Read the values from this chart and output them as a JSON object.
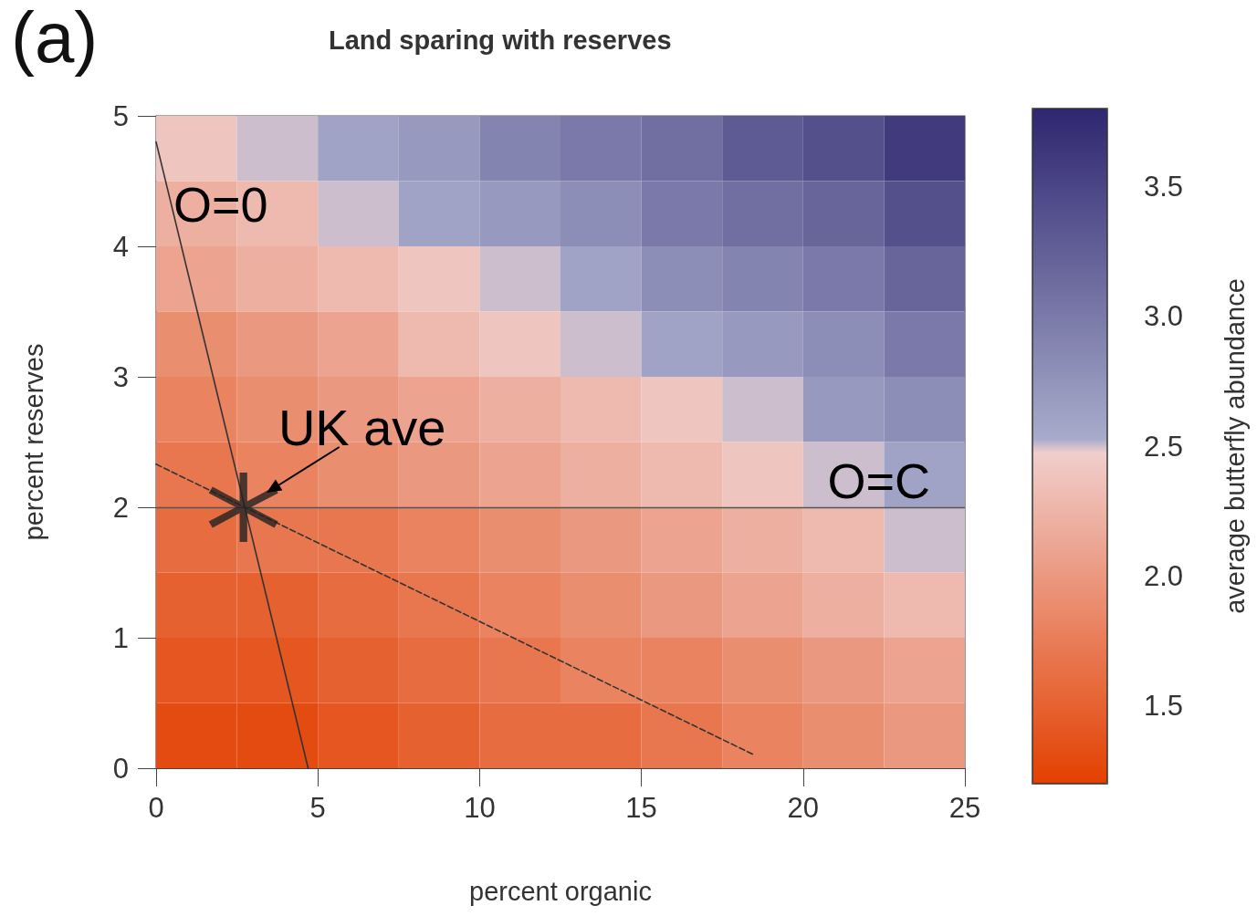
{
  "chart_data": {
    "type": "heatmap",
    "title": "Land sparing with reserves",
    "xlabel": "percent organic",
    "ylabel": "percent reserves",
    "clabel": "average butterfly abundance",
    "cells": [
      [
        2.4,
        2.5,
        2.6,
        2.7,
        2.9,
        3.0,
        3.1,
        3.3,
        3.4,
        3.6
      ],
      [
        2.2,
        2.3,
        2.5,
        2.6,
        2.7,
        2.8,
        3.0,
        3.1,
        3.2,
        3.4
      ],
      [
        2.1,
        2.2,
        2.3,
        2.4,
        2.5,
        2.6,
        2.8,
        2.9,
        3.0,
        3.2
      ],
      [
        1.9,
        2.0,
        2.1,
        2.3,
        2.4,
        2.5,
        2.6,
        2.7,
        2.8,
        3.0
      ],
      [
        1.8,
        1.9,
        2.0,
        2.1,
        2.2,
        2.3,
        2.4,
        2.5,
        2.7,
        2.8
      ],
      [
        1.7,
        1.8,
        1.9,
        2.0,
        2.1,
        2.2,
        2.3,
        2.4,
        2.5,
        2.6
      ],
      [
        1.6,
        1.7,
        1.7,
        1.8,
        1.9,
        2.0,
        2.1,
        2.2,
        2.3,
        2.5
      ],
      [
        1.5,
        1.5,
        1.6,
        1.7,
        1.8,
        1.9,
        2.0,
        2.1,
        2.2,
        2.3
      ],
      [
        1.4,
        1.4,
        1.5,
        1.6,
        1.7,
        1.8,
        1.8,
        1.9,
        2.0,
        2.1
      ],
      [
        1.3,
        1.3,
        1.4,
        1.5,
        1.6,
        1.6,
        1.7,
        1.8,
        1.9,
        2.0
      ]
    ],
    "clim": [
      1.2,
      3.8
    ],
    "cticks": [
      1.5,
      {
        "value": 2,
        "label": "2.0"
      },
      2.5,
      {
        "value": 3,
        "label": "3.0"
      },
      3.5
    ],
    "colors": [
      "#e34000",
      "#f0d0d0",
      "#aaaecc",
      "#2e2670"
    ],
    "xlim": [
      0,
      25
    ],
    "xticks": [
      0,
      5,
      10,
      15,
      20,
      25
    ],
    "ylim": [
      0,
      5
    ],
    "yticks": [
      0,
      1,
      2,
      3,
      4,
      5
    ],
    "series": [
      {
        "type": "line",
        "name": "O=0",
        "x": [
          0,
          4.7
        ],
        "values": [
          4.8,
          0
        ],
        "color": "#333333",
        "line_style": "solid",
        "marker": "none"
      },
      {
        "type": "line",
        "x": [
          0,
          18.5
        ],
        "values": [
          2.33,
          0.1
        ],
        "color": "#333333",
        "line_style": "dashed",
        "marker": "none"
      },
      {
        "type": "scatter",
        "x": [
          2.7
        ],
        "values": [
          2
        ],
        "color": "#222222",
        "marker": "star"
      }
    ],
    "ref_lines": [
      {
        "axis": "y",
        "value": 2,
        "label": "O=C",
        "color": "#555555"
      }
    ],
    "annotations": [
      "(a)",
      {
        "text": "UK ave",
        "x": 2.7,
        "y": 2
      }
    ]
  }
}
